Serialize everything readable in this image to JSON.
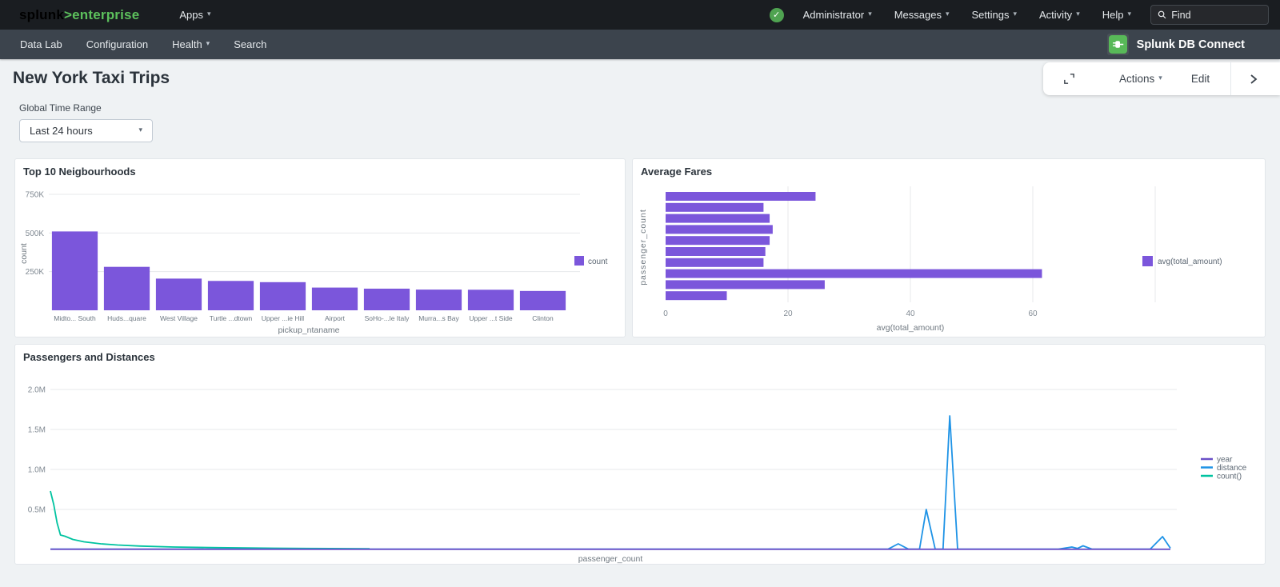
{
  "topbar": {
    "logo": {
      "brand": "splunk",
      "gt": ">",
      "product": "enterprise"
    },
    "apps_label": "Apps",
    "menus": [
      {
        "label": "Administrator"
      },
      {
        "label": "Messages"
      },
      {
        "label": "Settings"
      },
      {
        "label": "Activity"
      },
      {
        "label": "Help"
      }
    ],
    "find_placeholder": "Find"
  },
  "navbar": {
    "items": [
      {
        "label": "Data Lab",
        "caret": false
      },
      {
        "label": "Configuration",
        "caret": false
      },
      {
        "label": "Health",
        "caret": true
      },
      {
        "label": "Search",
        "caret": false
      }
    ],
    "app_name": "Splunk DB Connect"
  },
  "toolbar": {
    "actions_label": "Actions",
    "edit_label": "Edit"
  },
  "page": {
    "title": "New York Taxi Trips",
    "time_range_label": "Global Time Range",
    "time_range_value": "Last 24 hours"
  },
  "colors": {
    "purple": "#7b56db",
    "blue": "#1e93e6",
    "teal": "#00c3a0",
    "green": "#5cc05c",
    "grid": "#e7e9eb",
    "tick_text": "#818a93"
  },
  "chart_data": [
    {
      "type": "bar",
      "title": "Top 10 Neigbourhoods",
      "categories": [
        "Midto... South",
        "Huds...quare",
        "West Village",
        "Turtle ...dtown",
        "Upper ...ie Hill",
        "Airport",
        "SoHo-...le Italy",
        "Murra...s Bay",
        "Upper ...t Side",
        "Clinton"
      ],
      "values": [
        510000,
        281000,
        205000,
        190000,
        182000,
        147000,
        140000,
        134000,
        133000,
        125000
      ],
      "xlabel": "pickup_ntaname",
      "ylabel": "count",
      "yticks": [
        250000,
        500000,
        750000
      ],
      "ytick_labels": [
        "250K",
        "500K",
        "750K"
      ],
      "ylim": [
        0,
        800000
      ],
      "grid": true,
      "legend": [
        {
          "label": "count",
          "color": "#7b56db"
        }
      ],
      "legend_position": "right"
    },
    {
      "type": "bar",
      "orientation": "horizontal",
      "title": "Average Fares",
      "values": [
        24.5,
        16,
        17,
        17.5,
        17,
        16.3,
        16,
        61.5,
        26,
        10
      ],
      "xlabel": "avg(total_amount)",
      "ylabel": "passenger_count",
      "xticks": [
        0,
        20,
        40,
        60
      ],
      "grid_xticks": [
        20,
        40,
        60,
        80
      ],
      "xlim": [
        0,
        82
      ],
      "grid": true,
      "legend": [
        {
          "label": "avg(total_amount)",
          "color": "#7b56db"
        }
      ],
      "legend_position": "right"
    },
    {
      "type": "line",
      "title": "Passengers and Distances",
      "xlabel": "passenger_count",
      "yticks": [
        500000,
        1000000,
        1500000,
        2000000
      ],
      "ytick_labels": [
        "0.5M",
        "1.0M",
        "1.5M",
        "2.0M"
      ],
      "ylim": [
        0,
        2200000
      ],
      "grid": true,
      "legend_position": "right",
      "series": [
        {
          "name": "year",
          "color": "#6a50c7",
          "points": [
            [
              0,
              2019
            ],
            [
              1,
              2019
            ]
          ]
        },
        {
          "name": "distance",
          "color": "#1e93e6",
          "points": [
            [
              0,
              4000
            ],
            [
              0.73,
              4000
            ],
            [
              0.748,
              4000
            ],
            [
              0.757,
              70000
            ],
            [
              0.766,
              4000
            ],
            [
              0.776,
              4000
            ],
            [
              0.782,
              500000
            ],
            [
              0.79,
              4000
            ],
            [
              0.797,
              4000
            ],
            [
              0.803,
              1670000
            ],
            [
              0.81,
              4000
            ],
            [
              0.9,
              4000
            ],
            [
              0.912,
              30000
            ],
            [
              0.917,
              12000
            ],
            [
              0.922,
              45000
            ],
            [
              0.93,
              4000
            ],
            [
              0.982,
              4000
            ],
            [
              0.993,
              160000
            ],
            [
              1,
              15000
            ]
          ]
        },
        {
          "name": "count()",
          "color": "#00c3a0",
          "points": [
            [
              0,
              730000
            ],
            [
              0.003,
              560000
            ],
            [
              0.006,
              330000
            ],
            [
              0.009,
              180000
            ],
            [
              0.013,
              165000
            ],
            [
              0.02,
              125000
            ],
            [
              0.03,
              95000
            ],
            [
              0.045,
              70000
            ],
            [
              0.06,
              55000
            ],
            [
              0.08,
              42000
            ],
            [
              0.11,
              30000
            ],
            [
              0.15,
              22000
            ],
            [
              0.2,
              15000
            ],
            [
              0.25,
              11000
            ],
            [
              0.285,
              9000
            ]
          ]
        }
      ]
    }
  ]
}
